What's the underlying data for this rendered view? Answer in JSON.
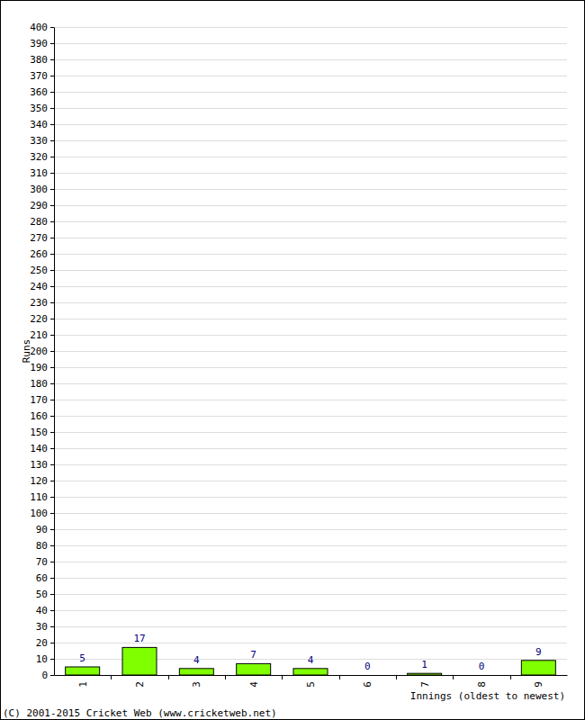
{
  "chart_data": {
    "type": "bar",
    "x_label": "Innings (oldest to newest)",
    "y_label": "Runs",
    "annotations": [
      "(C) 2001-2015 Cricket Web (www.cricketweb.net)"
    ],
    "categories": [
      "1",
      "2",
      "3",
      "4",
      "5",
      "6",
      "7",
      "8",
      "9"
    ],
    "values": [
      5,
      17,
      4,
      7,
      4,
      0,
      1,
      0,
      9
    ],
    "color": "#80ff00",
    "ylim": [
      0,
      400
    ],
    "yticks": [
      0,
      10,
      20,
      30,
      40,
      50,
      60,
      70,
      80,
      90,
      100,
      110,
      120,
      130,
      140,
      150,
      160,
      170,
      180,
      190,
      200,
      210,
      220,
      230,
      240,
      250,
      260,
      270,
      280,
      290,
      300,
      310,
      320,
      330,
      340,
      350,
      360,
      370,
      380,
      390,
      400
    ],
    "grid": true,
    "data_labels": true
  }
}
